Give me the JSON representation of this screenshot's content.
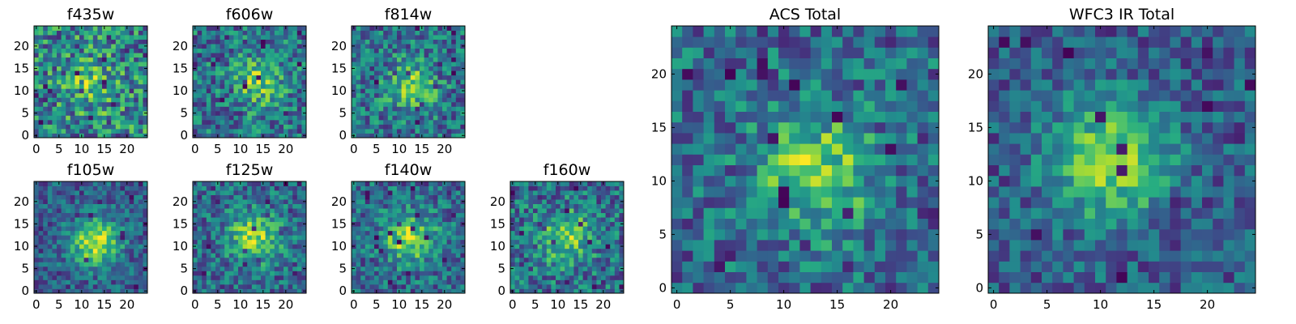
{
  "chart_data": [
    {
      "type": "heatmap",
      "title": "f435w",
      "colormap": "viridis",
      "grid_size": 25,
      "xlim": [
        0,
        24
      ],
      "ylim": [
        0,
        24
      ],
      "xticks": [
        0,
        5,
        10,
        15,
        20
      ],
      "yticks": [
        0,
        5,
        10,
        15,
        20
      ],
      "xtick_labels": [
        "0",
        "5",
        "10",
        "15",
        "20"
      ],
      "ytick_labels": [
        "0",
        "5",
        "10",
        "15",
        "20"
      ],
      "grid": false,
      "center": [
        12,
        11
      ],
      "signal": 0.25,
      "noise": 0.75,
      "seed": 101
    },
    {
      "type": "heatmap",
      "title": "f606w",
      "colormap": "viridis",
      "grid_size": 25,
      "xlim": [
        0,
        24
      ],
      "ylim": [
        0,
        24
      ],
      "xticks": [
        0,
        5,
        10,
        15,
        20
      ],
      "yticks": [
        0,
        5,
        10,
        15,
        20
      ],
      "xtick_labels": [
        "0",
        "5",
        "10",
        "15",
        "20"
      ],
      "ytick_labels": [
        "0",
        "5",
        "10",
        "15",
        "20"
      ],
      "grid": false,
      "center": [
        14,
        12
      ],
      "signal": 0.38,
      "noise": 0.62,
      "seed": 202
    },
    {
      "type": "heatmap",
      "title": "f814w",
      "colormap": "viridis",
      "grid_size": 25,
      "xlim": [
        0,
        24
      ],
      "ylim": [
        0,
        24
      ],
      "xticks": [
        0,
        5,
        10,
        15,
        20
      ],
      "yticks": [
        0,
        5,
        10,
        15,
        20
      ],
      "xtick_labels": [
        "0",
        "5",
        "10",
        "15",
        "20"
      ],
      "ytick_labels": [
        "0",
        "5",
        "10",
        "15",
        "20"
      ],
      "grid": false,
      "center": [
        13,
        11
      ],
      "signal": 0.4,
      "noise": 0.6,
      "seed": 303
    },
    {
      "type": "heatmap",
      "title": "f105w",
      "colormap": "viridis",
      "grid_size": 25,
      "xlim": [
        0,
        24
      ],
      "ylim": [
        0,
        24
      ],
      "xticks": [
        0,
        5,
        10,
        15,
        20
      ],
      "yticks": [
        0,
        5,
        10,
        15,
        20
      ],
      "xtick_labels": [
        "0",
        "5",
        "10",
        "15",
        "20"
      ],
      "ytick_labels": [
        "0",
        "5",
        "10",
        "15",
        "20"
      ],
      "grid": false,
      "center": [
        13,
        11
      ],
      "signal": 0.6,
      "noise": 0.45,
      "seed": 404
    },
    {
      "type": "heatmap",
      "title": "f125w",
      "colormap": "viridis",
      "grid_size": 25,
      "xlim": [
        0,
        24
      ],
      "ylim": [
        0,
        24
      ],
      "xticks": [
        0,
        5,
        10,
        15,
        20
      ],
      "yticks": [
        0,
        5,
        10,
        15,
        20
      ],
      "xtick_labels": [
        "0",
        "5",
        "10",
        "15",
        "20"
      ],
      "ytick_labels": [
        "0",
        "5",
        "10",
        "15",
        "20"
      ],
      "grid": false,
      "center": [
        13,
        12
      ],
      "signal": 0.5,
      "noise": 0.55,
      "seed": 505
    },
    {
      "type": "heatmap",
      "title": "f140w",
      "colormap": "viridis",
      "grid_size": 25,
      "xlim": [
        0,
        24
      ],
      "ylim": [
        0,
        24
      ],
      "xticks": [
        0,
        5,
        10,
        15,
        20
      ],
      "yticks": [
        0,
        5,
        10,
        15,
        20
      ],
      "xtick_labels": [
        "0",
        "5",
        "10",
        "15",
        "20"
      ],
      "ytick_labels": [
        "0",
        "5",
        "10",
        "15",
        "20"
      ],
      "grid": false,
      "center": [
        12,
        12
      ],
      "signal": 0.5,
      "noise": 0.55,
      "seed": 606
    },
    {
      "type": "heatmap",
      "title": "f160w",
      "colormap": "viridis",
      "grid_size": 25,
      "xlim": [
        0,
        24
      ],
      "ylim": [
        0,
        24
      ],
      "xticks": [
        0,
        5,
        10,
        15,
        20
      ],
      "yticks": [
        0,
        5,
        10,
        15,
        20
      ],
      "xtick_labels": [
        "0",
        "5",
        "10",
        "15",
        "20"
      ],
      "ytick_labels": [
        "0",
        "5",
        "10",
        "15",
        "20"
      ],
      "grid": false,
      "center": [
        12,
        12
      ],
      "signal": 0.45,
      "noise": 0.6,
      "seed": 707
    },
    {
      "type": "heatmap",
      "title": "ACS Total",
      "colormap": "viridis",
      "grid_size": 25,
      "xlim": [
        0,
        24
      ],
      "ylim": [
        0,
        24
      ],
      "xticks": [
        0,
        5,
        10,
        15,
        20
      ],
      "yticks": [
        0,
        5,
        10,
        15,
        20
      ],
      "xtick_labels": [
        "0",
        "5",
        "10",
        "15",
        "20"
      ],
      "ytick_labels": [
        "0",
        "5",
        "10",
        "15",
        "20"
      ],
      "grid": false,
      "center": [
        13,
        11
      ],
      "signal": 0.45,
      "noise": 0.55,
      "seed": 808
    },
    {
      "type": "heatmap",
      "title": "WFC3 IR Total",
      "colormap": "viridis",
      "grid_size": 25,
      "xlim": [
        0,
        24
      ],
      "ylim": [
        0,
        24
      ],
      "xticks": [
        0,
        5,
        10,
        15,
        20
      ],
      "yticks": [
        0,
        5,
        10,
        15,
        20
      ],
      "xtick_labels": [
        "0",
        "5",
        "10",
        "15",
        "20"
      ],
      "ytick_labels": [
        "0",
        "5",
        "10",
        "15",
        "20"
      ],
      "grid": false,
      "center": [
        11,
        12
      ],
      "signal": 0.55,
      "noise": 0.45,
      "seed": 909
    }
  ]
}
